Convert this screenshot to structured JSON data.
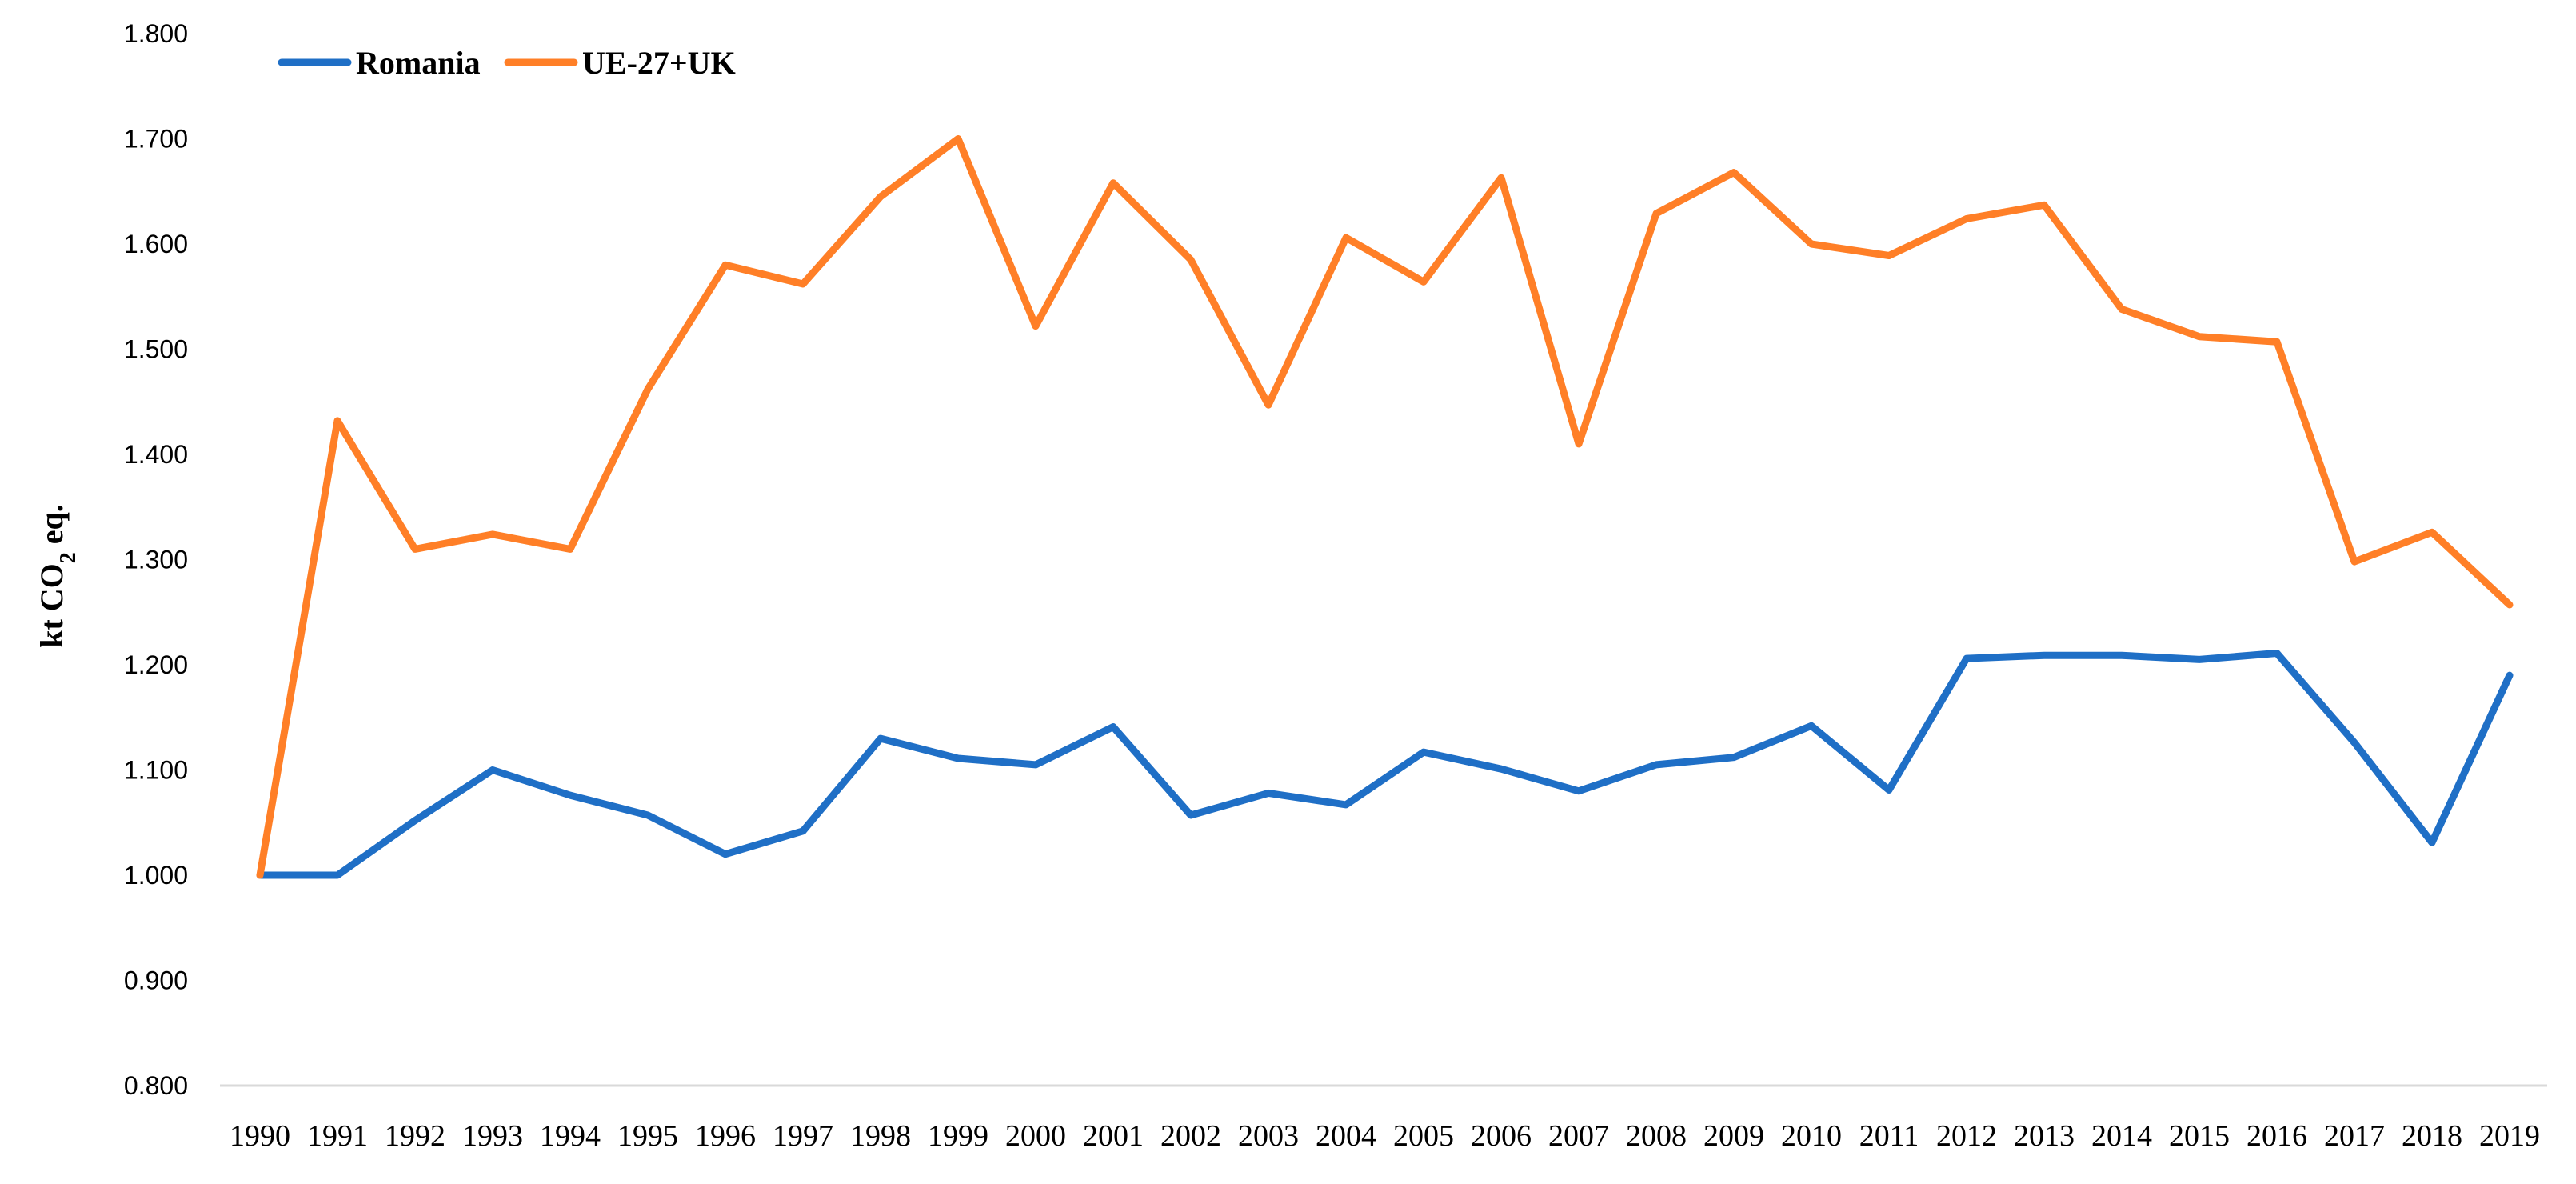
{
  "chart_data": {
    "type": "line",
    "title": "",
    "xlabel": "",
    "ylabel": "kt CO2 eq.",
    "ylabel_parts": {
      "main": "kt CO",
      "sub": "2",
      "suffix": " eq."
    },
    "ylim": [
      0.8,
      1.8
    ],
    "yticks": [
      "0.800",
      "0.900",
      "1.000",
      "1.100",
      "1.200",
      "1.300",
      "1.400",
      "1.500",
      "1.600",
      "1.700",
      "1.800"
    ],
    "ytick_values": [
      0.8,
      0.9,
      1.0,
      1.1,
      1.2,
      1.3,
      1.4,
      1.5,
      1.6,
      1.7,
      1.8
    ],
    "categories": [
      "1990",
      "1991",
      "1992",
      "1993",
      "1994",
      "1995",
      "1996",
      "1997",
      "1998",
      "1999",
      "2000",
      "2001",
      "2002",
      "2003",
      "2004",
      "2005",
      "2006",
      "2007",
      "2008",
      "2009",
      "2010",
      "2011",
      "2012",
      "2013",
      "2014",
      "2015",
      "2016",
      "2017",
      "2018",
      "2019"
    ],
    "legend_position": "top-left",
    "grid": false,
    "series": [
      {
        "name": "Romania",
        "color": "#1f6fc6",
        "values": [
          1.0,
          1.0,
          1.052,
          1.1,
          1.076,
          1.057,
          1.02,
          1.042,
          1.13,
          1.111,
          1.105,
          1.141,
          1.057,
          1.078,
          1.067,
          1.117,
          1.101,
          1.08,
          1.105,
          1.112,
          1.142,
          1.081,
          1.206,
          1.209,
          1.209,
          1.205,
          1.211,
          1.126,
          1.031,
          1.19
        ]
      },
      {
        "name": "UE-27+UK",
        "color": "#ff7f27",
        "values": [
          1.0,
          1.432,
          1.31,
          1.324,
          1.31,
          1.462,
          1.58,
          1.562,
          1.645,
          1.7,
          1.522,
          1.658,
          1.585,
          1.447,
          1.606,
          1.564,
          1.663,
          1.41,
          1.629,
          1.668,
          1.6,
          1.589,
          1.624,
          1.637,
          1.538,
          1.512,
          1.507,
          1.298,
          1.326,
          1.257
        ]
      }
    ]
  }
}
